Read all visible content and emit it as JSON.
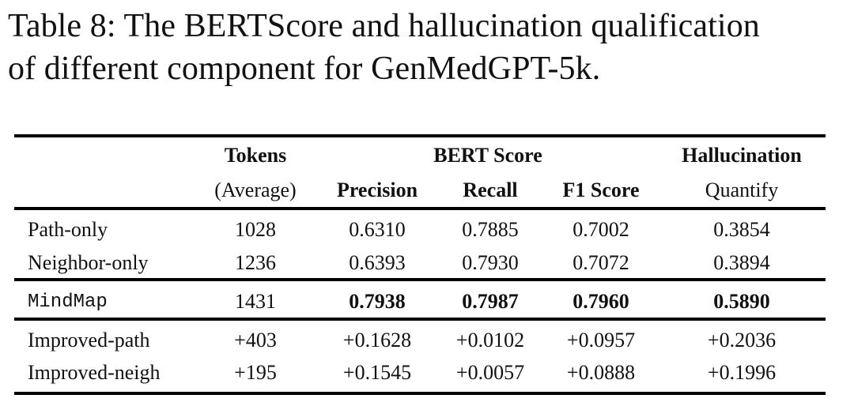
{
  "caption": {
    "line1": "Table 8: The BERTScore and hallucination qualification",
    "line2": "of different component for GenMedGPT-5k."
  },
  "table": {
    "header_top": {
      "tokens": "Tokens",
      "bert_score": "BERT Score",
      "hallucination": "Hallucination"
    },
    "header_sub": {
      "tokens_avg": "(Average)",
      "precision": "Precision",
      "recall": "Recall",
      "f1": "F1 Score",
      "quantify": "Quantify"
    },
    "rows": [
      {
        "name": "Path-only",
        "tokens": "1028",
        "precision": "0.6310",
        "recall": "0.7885",
        "f1": "0.7002",
        "halluc": "0.3854"
      },
      {
        "name": "Neighbor-only",
        "tokens": "1236",
        "precision": "0.6393",
        "recall": "0.7930",
        "f1": "0.7072",
        "halluc": "0.3894"
      },
      {
        "name": "MindMap",
        "tokens": "1431",
        "precision": "0.7938",
        "recall": "0.7987",
        "f1": "0.7960",
        "halluc": "0.5890"
      },
      {
        "name": "Improved-path",
        "tokens": "+403",
        "precision": "+0.1628",
        "recall": "+0.0102",
        "f1": "+0.0957",
        "halluc": "+0.2036"
      },
      {
        "name": "Improved-neigh",
        "tokens": "+195",
        "precision": "+0.1545",
        "recall": "+0.0057",
        "f1": "+0.0888",
        "halluc": "+0.1996"
      }
    ]
  }
}
